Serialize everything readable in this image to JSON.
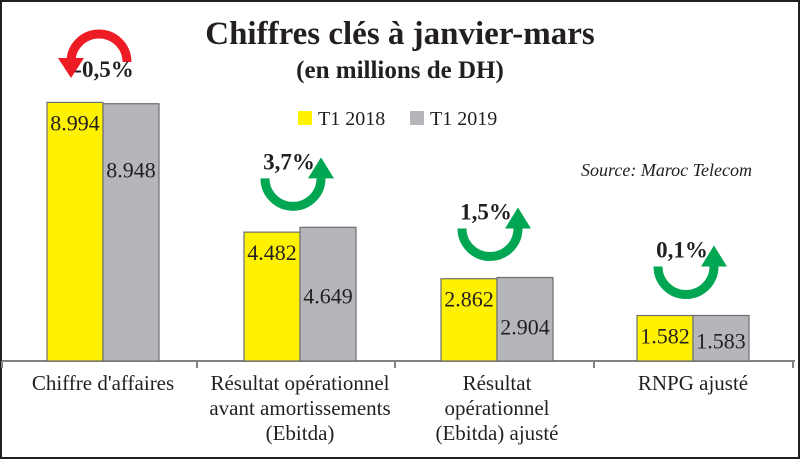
{
  "chart_data": {
    "type": "bar",
    "title": "Chiffres clés à janvier-mars",
    "subtitle": "(en millions de DH)",
    "source": "Source: Maroc Telecom",
    "categories": [
      [
        "Chiffre d'affaires"
      ],
      [
        "Résultat opérationnel",
        "avant amortissements",
        "(Ebitda)"
      ],
      [
        "Résultat",
        "opérationnel",
        "(Ebitda) ajusté"
      ],
      [
        "RNPG ajusté"
      ]
    ],
    "series": [
      {
        "name": "T1 2018",
        "color": "#fff200",
        "values": [
          8994,
          4482,
          2862,
          1582
        ],
        "labels": [
          "8.994",
          "4.482",
          "2.862",
          "1.582"
        ]
      },
      {
        "name": "T1 2019",
        "color": "#b5b6ba",
        "values": [
          8948,
          4649,
          2904,
          1583
        ],
        "labels": [
          "8.948",
          "4.649",
          "2.904",
          "1.583"
        ]
      }
    ],
    "changes": [
      {
        "label": "-0,5%",
        "direction": "down",
        "color": "#ed1c24"
      },
      {
        "label": "3,7%",
        "direction": "up",
        "color": "#00a651"
      },
      {
        "label": "1,5%",
        "direction": "up",
        "color": "#00a651"
      },
      {
        "label": "0,1%",
        "direction": "up",
        "color": "#00a651"
      }
    ],
    "ylim": [
      0,
      9000
    ],
    "grid": false,
    "legend": "top-right"
  }
}
